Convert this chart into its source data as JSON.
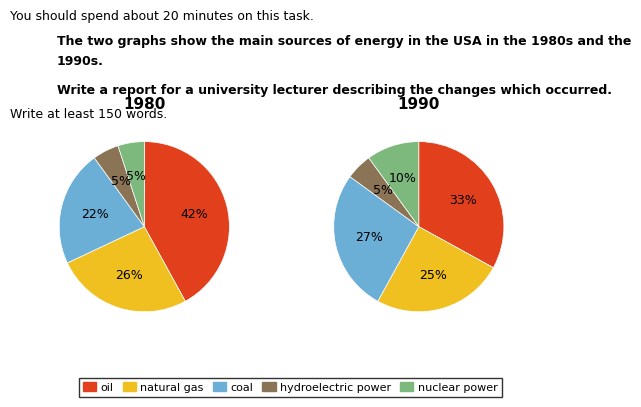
{
  "title_line1": "You should spend about 20 minutes on this task.",
  "subtitle_line1": "The two graphs show the main sources of energy in the USA in the 1980s and the",
  "subtitle_line2": "1990s.",
  "subtitle_line3": "Write a report for a university lecturer describing the changes which occurred.",
  "footer": "Write at least 150 words.",
  "pie1_title": "1980",
  "pie2_title": "1990",
  "categories": [
    "oil",
    "natural gas",
    "coal",
    "hydroelectric power",
    "nuclear power"
  ],
  "colors": [
    "#E2401C",
    "#F0C020",
    "#6BAED6",
    "#8B7355",
    "#7DB87D"
  ],
  "pie1_values": [
    42,
    26,
    22,
    5,
    5
  ],
  "pie2_values": [
    33,
    25,
    27,
    5,
    10
  ],
  "pie1_labels": [
    "42%",
    "26%",
    "22%",
    "5%",
    "5%"
  ],
  "pie2_labels": [
    "33%",
    "25%",
    "27%",
    "5%",
    "10%"
  ],
  "background_color": "#FFFFFF",
  "text_color": "#000000",
  "title_fontsize": 9,
  "subtitle_fontsize": 9,
  "pie_label_fontsize": 9,
  "pie_title_fontsize": 11
}
